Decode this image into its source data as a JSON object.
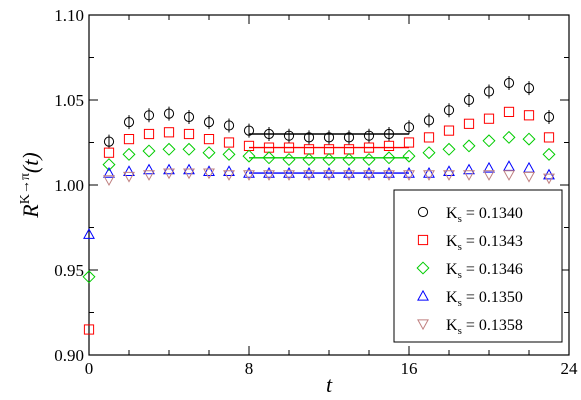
{
  "chart_data": {
    "type": "scatter",
    "title": "",
    "xlabel": "t",
    "ylabel": {
      "base": "R",
      "superscript": "K→π",
      "suffix": "(t)"
    },
    "xlim": [
      0,
      24
    ],
    "ylim": [
      0.9,
      1.1
    ],
    "xticks": [
      0,
      8,
      16,
      24
    ],
    "yticks": [
      0.9,
      0.95,
      1.0,
      1.05,
      1.1
    ],
    "xtick_labels": [
      "0",
      "8",
      "16",
      "24"
    ],
    "ytick_labels": [
      "0.90",
      "0.95",
      "1.00",
      "1.05",
      "1.10"
    ],
    "grid": false,
    "legend_position": "bottom-right",
    "x": [
      0,
      1,
      2,
      3,
      4,
      5,
      6,
      7,
      8,
      9,
      10,
      11,
      12,
      13,
      14,
      15,
      16,
      17,
      18,
      19,
      20,
      21,
      22,
      23
    ],
    "series": [
      {
        "name": "K_s = 0.1340",
        "label_main": "K",
        "label_sub": "s",
        "label_value": " = 0.1340",
        "marker": "circle",
        "color": "#000000",
        "values": [
          null,
          1.0255,
          1.037,
          1.041,
          1.042,
          1.04,
          1.037,
          1.035,
          1.032,
          1.03,
          1.029,
          1.028,
          1.028,
          1.028,
          1.029,
          1.03,
          1.034,
          1.038,
          1.044,
          1.05,
          1.055,
          1.06,
          1.057,
          1.04
        ],
        "fit": {
          "x": [
            8,
            16
          ],
          "y": 1.03
        }
      },
      {
        "name": "K_s = 0.1343",
        "label_main": "K",
        "label_sub": "s",
        "label_value": " = 0.1343",
        "marker": "square",
        "color": "#ff0000",
        "values": [
          0.915,
          1.019,
          1.027,
          1.03,
          1.031,
          1.03,
          1.027,
          1.025,
          1.023,
          1.022,
          1.022,
          1.021,
          1.021,
          1.021,
          1.022,
          1.023,
          1.025,
          1.028,
          1.032,
          1.036,
          1.039,
          1.043,
          1.041,
          1.028
        ],
        "fit": {
          "x": [
            8,
            16
          ],
          "y": 1.022
        }
      },
      {
        "name": "K_s = 0.1346",
        "label_main": "K",
        "label_sub": "s",
        "label_value": " = 0.1346",
        "marker": "diamond",
        "color": "#00cc00",
        "values": [
          0.946,
          1.012,
          1.018,
          1.02,
          1.021,
          1.021,
          1.019,
          1.018,
          1.017,
          1.016,
          1.015,
          1.015,
          1.015,
          1.015,
          1.015,
          1.016,
          1.017,
          1.019,
          1.021,
          1.023,
          1.026,
          1.028,
          1.027,
          1.018
        ],
        "fit": {
          "x": [
            8,
            16
          ],
          "y": 1.016
        }
      },
      {
        "name": "K_s = 0.1350",
        "label_main": "K",
        "label_sub": "s",
        "label_value": " = 0.1350",
        "marker": "triangle-up",
        "color": "#0000ff",
        "values": [
          0.971,
          1.007,
          1.008,
          1.009,
          1.009,
          1.009,
          1.008,
          1.008,
          1.007,
          1.007,
          1.007,
          1.007,
          1.007,
          1.007,
          1.007,
          1.007,
          1.007,
          1.007,
          1.008,
          1.009,
          1.01,
          1.011,
          1.01,
          1.006
        ],
        "fit": {
          "x": [
            8,
            16
          ],
          "y": 1.007
        }
      },
      {
        "name": "K_s = 0.1358",
        "label_main": "K",
        "label_sub": "s",
        "label_value": " = 0.1358",
        "marker": "triangle-down",
        "color": "#c08080",
        "values": [
          null,
          1.003,
          1.005,
          1.006,
          1.007,
          1.007,
          1.007,
          1.006,
          1.006,
          1.006,
          1.006,
          1.006,
          1.006,
          1.006,
          1.006,
          1.006,
          1.006,
          1.006,
          1.006,
          1.006,
          1.006,
          1.006,
          1.005,
          1.004
        ],
        "fit": null
      }
    ]
  }
}
